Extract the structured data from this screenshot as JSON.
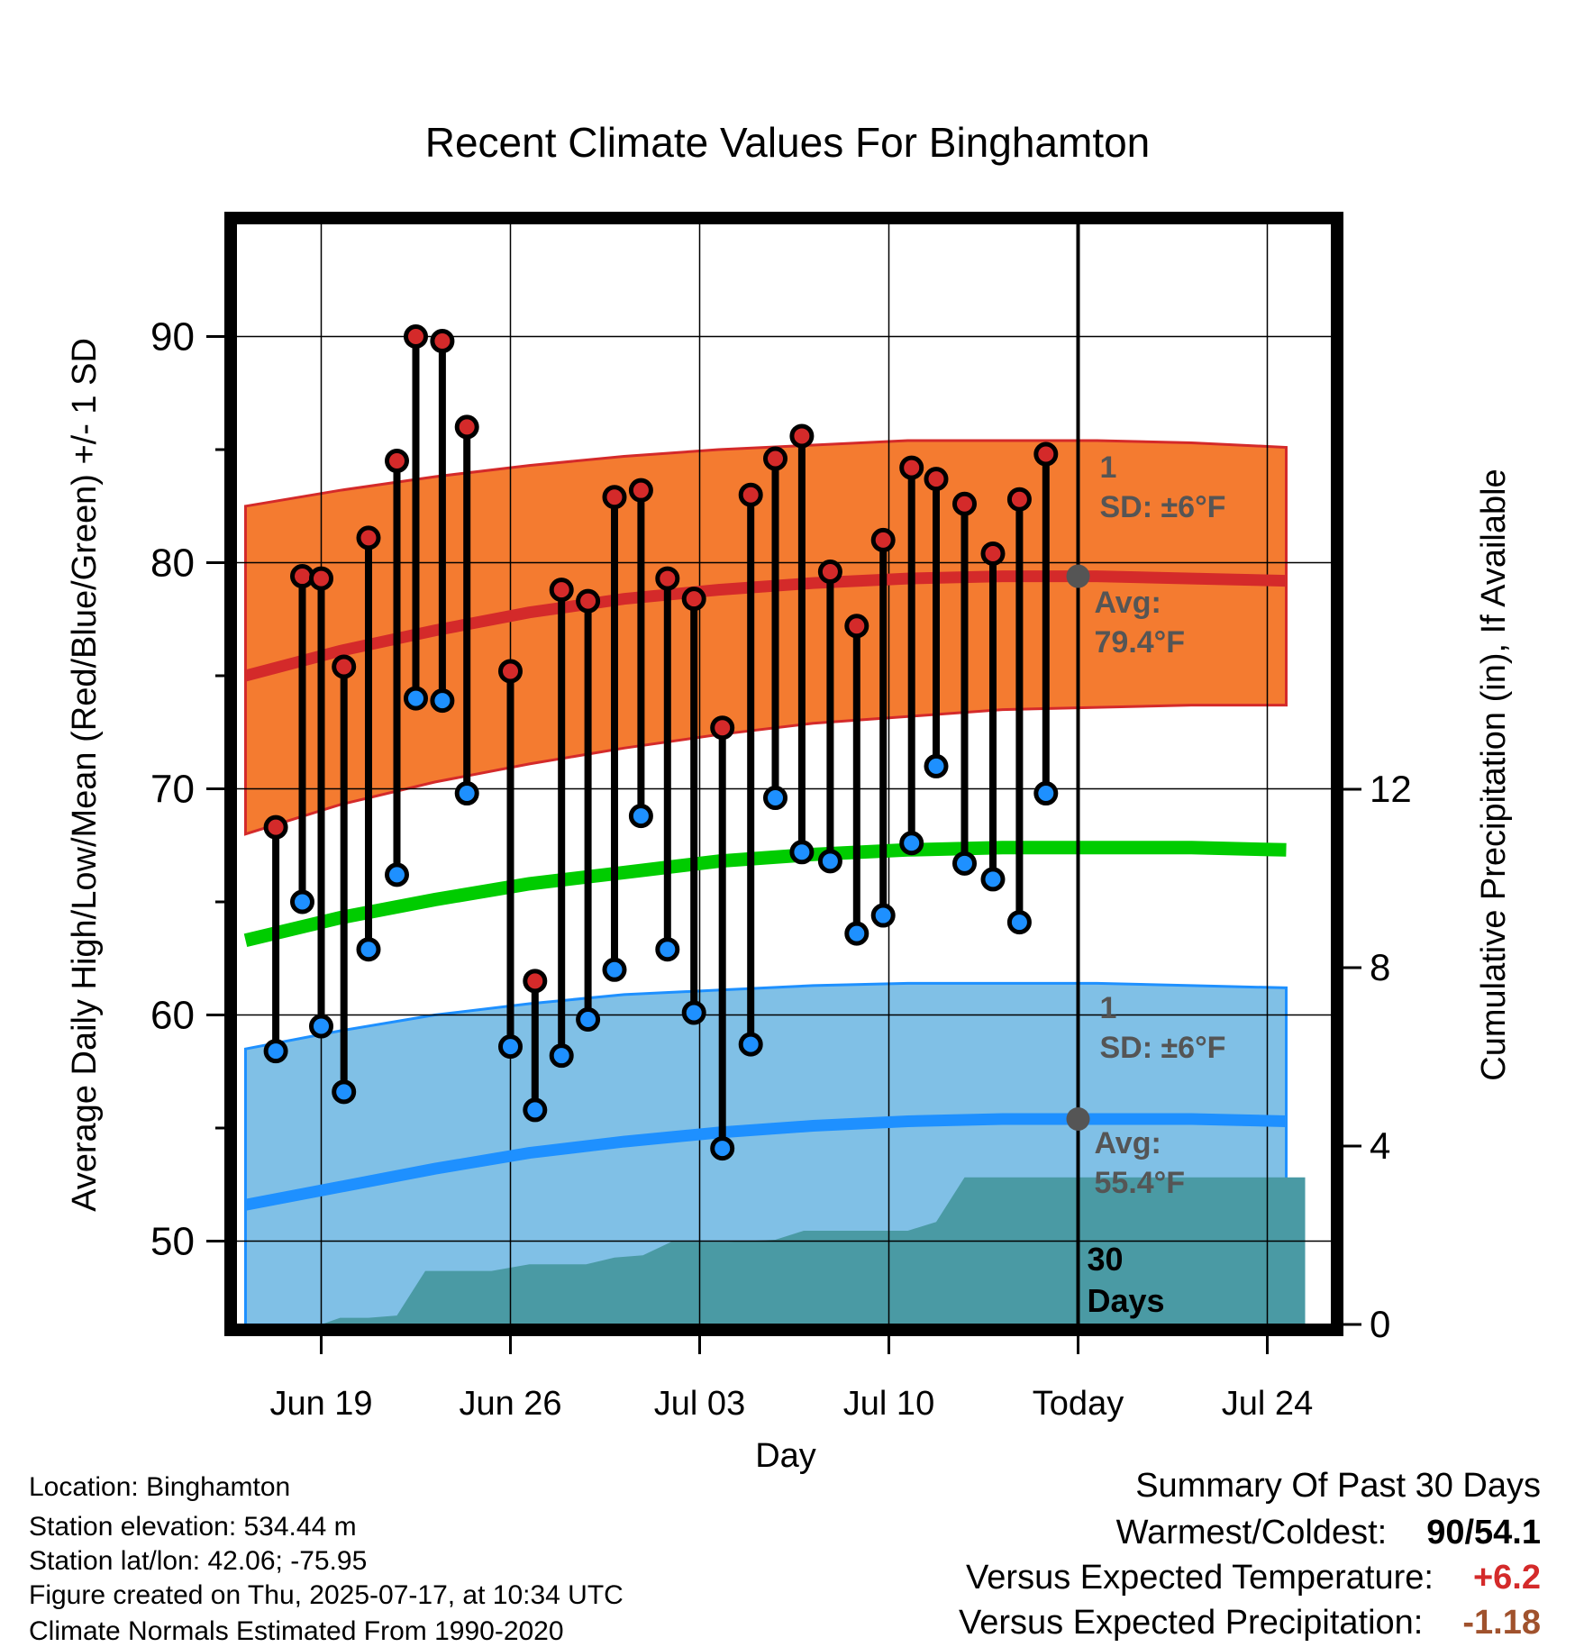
{
  "chart_data": {
    "type": "line",
    "title": "Recent Climate Values For Binghamton",
    "xlabel": "Day",
    "ylabel": "Average Daily High/Low/Mean (Red/Blue/Green) +/- 1 SD",
    "y2label": "Cumulative Precipitation (in), If Available",
    "ylim": [
      46,
      95
    ],
    "y2lim": [
      0,
      24.5
    ],
    "yticks": [
      50,
      60,
      70,
      80,
      90
    ],
    "y2ticks": [
      0,
      4,
      8,
      12
    ],
    "xlim": [
      15.5,
      26.9
    ],
    "xticks": [
      {
        "label": "Jun 19",
        "x": 16.4
      },
      {
        "label": "Jun 26",
        "x": 18.4
      },
      {
        "label": "Jul 03",
        "x": 20.4
      },
      {
        "label": "Jul 10",
        "x": 22.4
      },
      {
        "label": "Today",
        "x": 24.4
      },
      {
        "label": "Jul 24",
        "x": 26.4
      }
    ],
    "grid": true,
    "today_x": 24.4,
    "days_label": "30 Days",
    "normals": {
      "x": [
        15.6,
        16.6,
        17.6,
        18.6,
        19.6,
        20.6,
        21.6,
        22.6,
        23.6,
        24.6,
        25.6,
        26.6
      ],
      "high_avg": [
        75.0,
        76.1,
        77.0,
        77.8,
        78.4,
        78.8,
        79.1,
        79.3,
        79.4,
        79.4,
        79.3,
        79.2
      ],
      "high_upper": [
        82.5,
        83.2,
        83.8,
        84.3,
        84.7,
        85.0,
        85.2,
        85.4,
        85.4,
        85.4,
        85.3,
        85.1
      ],
      "high_lower": [
        68.0,
        69.3,
        70.3,
        71.1,
        71.8,
        72.4,
        72.9,
        73.2,
        73.5,
        73.6,
        73.7,
        73.7
      ],
      "mean_avg": [
        63.3,
        64.3,
        65.1,
        65.8,
        66.3,
        66.8,
        67.1,
        67.3,
        67.4,
        67.4,
        67.4,
        67.3
      ],
      "low_avg": [
        51.6,
        52.4,
        53.2,
        53.9,
        54.4,
        54.8,
        55.1,
        55.3,
        55.4,
        55.4,
        55.4,
        55.3
      ],
      "low_upper": [
        58.5,
        59.3,
        60.0,
        60.5,
        60.9,
        61.1,
        61.3,
        61.4,
        61.4,
        61.4,
        61.3,
        61.2
      ],
      "low_lower": [
        46.3,
        46.3,
        46.3,
        46.3,
        46.3,
        46.3,
        46.3,
        46.3,
        46.3,
        46.3,
        46.3,
        46.3
      ]
    },
    "series": [
      {
        "name": "High",
        "x": [
          15.92,
          16.2,
          16.4,
          16.64,
          16.9,
          17.2,
          17.4,
          17.68,
          17.94,
          18.4,
          18.66,
          18.94,
          19.22,
          19.5,
          19.78,
          20.06,
          20.34,
          20.64,
          20.94,
          21.2,
          21.48,
          21.78,
          22.06,
          22.34,
          22.64,
          22.9,
          23.2,
          23.5,
          23.78,
          24.06
        ],
        "values": [
          68.3,
          79.4,
          79.3,
          75.4,
          81.1,
          84.5,
          90.0,
          89.8,
          86.0,
          75.2,
          61.5,
          78.8,
          78.3,
          82.9,
          83.2,
          79.3,
          78.4,
          72.7,
          83.0,
          84.6,
          85.6,
          79.6,
          77.2,
          81.0,
          84.2,
          83.7,
          82.6,
          80.4,
          82.8,
          84.8
        ]
      },
      {
        "name": "Low",
        "x": [
          15.92,
          16.2,
          16.4,
          16.64,
          16.9,
          17.2,
          17.4,
          17.68,
          17.94,
          18.4,
          18.66,
          18.94,
          19.22,
          19.5,
          19.78,
          20.06,
          20.34,
          20.64,
          20.94,
          21.2,
          21.48,
          21.78,
          22.06,
          22.34,
          22.64,
          22.9,
          23.2,
          23.5,
          23.78,
          24.06
        ],
        "values": [
          58.4,
          65.0,
          59.5,
          56.6,
          62.9,
          66.2,
          74.0,
          73.9,
          69.8,
          58.6,
          55.8,
          58.2,
          59.8,
          62.0,
          68.8,
          62.9,
          60.1,
          54.1,
          58.7,
          69.6,
          67.2,
          66.8,
          63.6,
          64.4,
          67.6,
          71.0,
          66.7,
          66.0,
          64.1,
          69.8
        ]
      },
      {
        "name": "Cumulative Precipitation",
        "x": [
          15.6,
          16.4,
          16.6,
          16.9,
          17.2,
          17.5,
          17.9,
          18.2,
          18.6,
          18.9,
          19.2,
          19.5,
          19.8,
          20.1,
          20.4,
          20.7,
          21.2,
          21.5,
          21.8,
          22.2,
          22.6,
          22.9,
          23.2,
          23.6,
          24.1,
          24.4,
          24.8,
          25.2,
          25.8,
          26.3,
          26.6,
          26.8
        ],
        "values": [
          0.0,
          0.0,
          0.15,
          0.15,
          0.2,
          1.2,
          1.2,
          1.2,
          1.35,
          1.35,
          1.35,
          1.5,
          1.55,
          1.85,
          1.85,
          1.85,
          1.9,
          2.1,
          2.1,
          2.1,
          2.1,
          2.3,
          3.3,
          3.3,
          3.3,
          3.3,
          3.3,
          3.3,
          3.3,
          3.3,
          3.3,
          3.3
        ]
      }
    ],
    "annotations": {
      "high_sd": "1 SD: ±6°F",
      "high_avg": "Avg: 79.4°F",
      "low_sd": "1 SD: ±6°F",
      "low_avg": "Avg: 55.4°F"
    },
    "colors": {
      "high_band": "#f47b30",
      "high_line": "#d42a2a",
      "mean_line": "#00cc00",
      "low_band": "#80c0e6",
      "low_line": "#1e90ff",
      "precip": "#4a9aa4",
      "high_marker": "#d42a2a",
      "low_marker": "#1e90ff",
      "today_marker": "#555555"
    }
  },
  "info": {
    "location": "Location: Binghamton",
    "elevation": "Station elevation: 534.44 m",
    "latlon": "Station lat/lon: 42.06; -75.95",
    "created": "Figure created on Thu, 2025-07-17, at 10:34 UTC",
    "normals": "Climate Normals Estimated From 1990-2020"
  },
  "summary": {
    "title": "Summary Of Past 30 Days",
    "warmest_label": "Warmest/Coldest:",
    "warmest_value": "90/54.1",
    "temp_label": "Versus Expected Temperature:",
    "temp_value": "+6.2",
    "temp_color": "#d42a2a",
    "precip_label": "Versus Expected Precipitation:",
    "precip_value": "-1.18",
    "precip_color": "#a0522d"
  }
}
